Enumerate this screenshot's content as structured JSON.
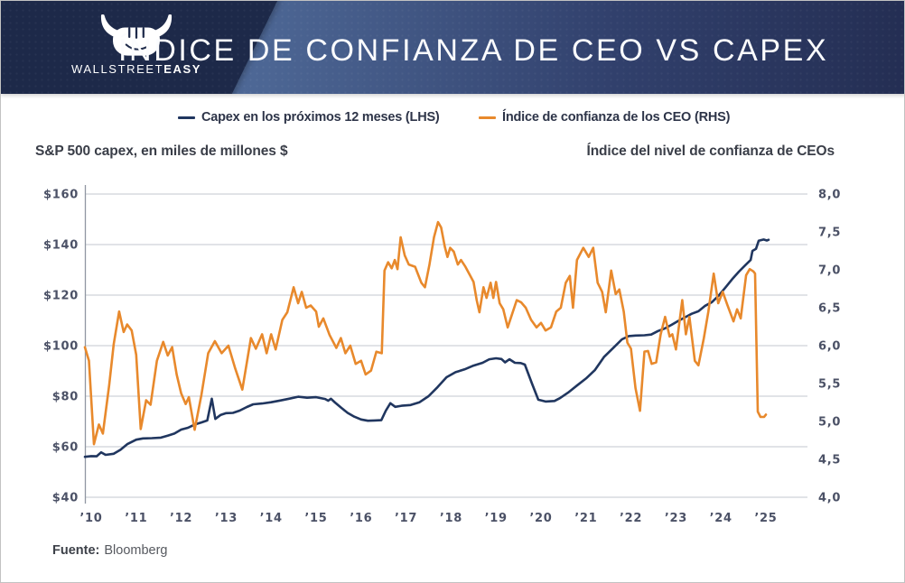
{
  "header": {
    "title": "ÍNDICE DE CONFIANZA DE CEO VS CAPEX",
    "brand_prefix": "WALLSTREET",
    "brand_suffix": "EASY",
    "colors": {
      "banner_left": "#58739f",
      "banner_right": "#242e53",
      "logo_plate": "#1d2949"
    }
  },
  "legend": [
    {
      "label": "Capex en los próximos 12 meses (LHS)",
      "color": "#20365f"
    },
    {
      "label": "Índice de confianza de los CEO (RHS)",
      "color": "#e8892c"
    }
  ],
  "axis_titles": {
    "left": "S&P 500 capex, en miles de millones $",
    "right": "Índice del nivel de confianza de CEOs"
  },
  "footer": {
    "source_label": "Fuente:",
    "source_value": "Bloomberg"
  },
  "chart_data": {
    "type": "line",
    "grid": true,
    "x_ticks": [
      "’10",
      "’11",
      "’12",
      "’13",
      "’14",
      "’15",
      "’16",
      "’17",
      "’18",
      "’19",
      "’20",
      "’21",
      "’22",
      "’23",
      "’24",
      "’25"
    ],
    "y_left": {
      "ticks": [
        "$160",
        "$140",
        "$120",
        "$100",
        "$80",
        "$60",
        "$40"
      ],
      "min": 40,
      "max": 160
    },
    "y_right": {
      "ticks": [
        "8,0",
        "7,5",
        "7,0",
        "6,5",
        "6,0",
        "5,5",
        "5,0",
        "4,5",
        "4,0"
      ],
      "min": 4.0,
      "max": 8.0
    },
    "colors": {
      "grid": "#c3c7cf",
      "spine": "#9096a2"
    },
    "series": [
      {
        "name": "Capex en los próximos 12 meses (LHS)",
        "axis": "left",
        "color": "#20365f",
        "points": [
          [
            2009.86,
            56
          ],
          [
            2010.0,
            56.3
          ],
          [
            2010.12,
            56.2
          ],
          [
            2010.22,
            57.8
          ],
          [
            2010.32,
            56.8
          ],
          [
            2010.5,
            57.2
          ],
          [
            2010.65,
            58.8
          ],
          [
            2010.8,
            61.0
          ],
          [
            2011.0,
            62.8
          ],
          [
            2011.15,
            63.3
          ],
          [
            2011.35,
            63.4
          ],
          [
            2011.55,
            63.6
          ],
          [
            2011.7,
            64.4
          ],
          [
            2011.85,
            65.2
          ],
          [
            2012.0,
            66.8
          ],
          [
            2012.15,
            67.5
          ],
          [
            2012.3,
            68.8
          ],
          [
            2012.45,
            69.6
          ],
          [
            2012.58,
            70.4
          ],
          [
            2012.68,
            79.0
          ],
          [
            2012.76,
            71.0
          ],
          [
            2012.88,
            72.6
          ],
          [
            2013.0,
            73.3
          ],
          [
            2013.15,
            73.4
          ],
          [
            2013.3,
            74.3
          ],
          [
            2013.46,
            75.7
          ],
          [
            2013.6,
            76.8
          ],
          [
            2013.8,
            77.1
          ],
          [
            2014.0,
            77.6
          ],
          [
            2014.2,
            78.3
          ],
          [
            2014.4,
            79.0
          ],
          [
            2014.6,
            79.8
          ],
          [
            2014.8,
            79.4
          ],
          [
            2015.0,
            79.6
          ],
          [
            2015.2,
            78.9
          ],
          [
            2015.27,
            78.2
          ],
          [
            2015.33,
            79.0
          ],
          [
            2015.42,
            77.5
          ],
          [
            2015.56,
            75.4
          ],
          [
            2015.7,
            73.4
          ],
          [
            2015.85,
            71.9
          ],
          [
            2016.0,
            70.8
          ],
          [
            2016.15,
            70.3
          ],
          [
            2016.3,
            70.4
          ],
          [
            2016.45,
            70.5
          ],
          [
            2016.55,
            74.3
          ],
          [
            2016.65,
            77.2
          ],
          [
            2016.76,
            75.8
          ],
          [
            2016.9,
            76.2
          ],
          [
            2017.1,
            76.5
          ],
          [
            2017.3,
            77.6
          ],
          [
            2017.5,
            80.0
          ],
          [
            2017.7,
            83.6
          ],
          [
            2017.9,
            87.5
          ],
          [
            2018.1,
            89.5
          ],
          [
            2018.3,
            90.6
          ],
          [
            2018.5,
            92.1
          ],
          [
            2018.7,
            93.2
          ],
          [
            2018.85,
            94.6
          ],
          [
            2019.0,
            95.0
          ],
          [
            2019.12,
            94.7
          ],
          [
            2019.2,
            93.4
          ],
          [
            2019.3,
            94.6
          ],
          [
            2019.42,
            93.2
          ],
          [
            2019.55,
            93.1
          ],
          [
            2019.64,
            92.5
          ],
          [
            2019.8,
            85.0
          ],
          [
            2019.94,
            78.6
          ],
          [
            2020.1,
            77.9
          ],
          [
            2020.3,
            78.1
          ],
          [
            2020.42,
            79.2
          ],
          [
            2020.6,
            81.4
          ],
          [
            2020.8,
            84.2
          ],
          [
            2021.0,
            87.0
          ],
          [
            2021.2,
            90.4
          ],
          [
            2021.4,
            95.5
          ],
          [
            2021.6,
            99.0
          ],
          [
            2021.8,
            102.5
          ],
          [
            2021.95,
            103.8
          ],
          [
            2022.1,
            104.0
          ],
          [
            2022.3,
            104.1
          ],
          [
            2022.45,
            104.4
          ],
          [
            2022.6,
            105.8
          ],
          [
            2022.75,
            106.8
          ],
          [
            2022.9,
            108.2
          ],
          [
            2023.05,
            109.8
          ],
          [
            2023.2,
            111.2
          ],
          [
            2023.35,
            112.6
          ],
          [
            2023.5,
            113.6
          ],
          [
            2023.65,
            115.8
          ],
          [
            2023.8,
            117.2
          ],
          [
            2023.95,
            119.8
          ],
          [
            2024.1,
            123.0
          ],
          [
            2024.25,
            126.3
          ],
          [
            2024.4,
            129.3
          ],
          [
            2024.55,
            132.0
          ],
          [
            2024.66,
            133.9
          ],
          [
            2024.7,
            137.5
          ],
          [
            2024.78,
            138.3
          ],
          [
            2024.84,
            141.5
          ],
          [
            2024.95,
            142.0
          ],
          [
            2025.02,
            141.6
          ],
          [
            2025.06,
            141.9
          ]
        ]
      },
      {
        "name": "Índice de confianza de los CEO (RHS)",
        "axis": "right",
        "color": "#e8892c",
        "points": [
          [
            2009.86,
            5.98
          ],
          [
            2009.95,
            5.8
          ],
          [
            2010.06,
            4.7
          ],
          [
            2010.17,
            4.96
          ],
          [
            2010.26,
            4.84
          ],
          [
            2010.4,
            5.48
          ],
          [
            2010.5,
            6.02
          ],
          [
            2010.62,
            6.45
          ],
          [
            2010.72,
            6.18
          ],
          [
            2010.8,
            6.28
          ],
          [
            2010.9,
            6.2
          ],
          [
            2011.0,
            5.88
          ],
          [
            2011.1,
            4.9
          ],
          [
            2011.22,
            5.28
          ],
          [
            2011.32,
            5.22
          ],
          [
            2011.46,
            5.8
          ],
          [
            2011.6,
            6.05
          ],
          [
            2011.7,
            5.87
          ],
          [
            2011.8,
            5.98
          ],
          [
            2011.9,
            5.62
          ],
          [
            2012.0,
            5.37
          ],
          [
            2012.1,
            5.23
          ],
          [
            2012.17,
            5.32
          ],
          [
            2012.3,
            4.89
          ],
          [
            2012.45,
            5.35
          ],
          [
            2012.6,
            5.9
          ],
          [
            2012.75,
            6.06
          ],
          [
            2012.9,
            5.9
          ],
          [
            2013.05,
            6.0
          ],
          [
            2013.2,
            5.7
          ],
          [
            2013.36,
            5.42
          ],
          [
            2013.55,
            6.1
          ],
          [
            2013.66,
            5.96
          ],
          [
            2013.8,
            6.15
          ],
          [
            2013.9,
            5.9
          ],
          [
            2014.0,
            6.15
          ],
          [
            2014.1,
            5.95
          ],
          [
            2014.25,
            6.34
          ],
          [
            2014.36,
            6.44
          ],
          [
            2014.5,
            6.77
          ],
          [
            2014.6,
            6.56
          ],
          [
            2014.68,
            6.71
          ],
          [
            2014.78,
            6.5
          ],
          [
            2014.88,
            6.53
          ],
          [
            2015.0,
            6.45
          ],
          [
            2015.06,
            6.25
          ],
          [
            2015.16,
            6.36
          ],
          [
            2015.3,
            6.14
          ],
          [
            2015.45,
            5.97
          ],
          [
            2015.55,
            6.1
          ],
          [
            2015.65,
            5.9
          ],
          [
            2015.76,
            6.0
          ],
          [
            2015.88,
            5.76
          ],
          [
            2016.0,
            5.8
          ],
          [
            2016.1,
            5.62
          ],
          [
            2016.22,
            5.67
          ],
          [
            2016.34,
            5.92
          ],
          [
            2016.46,
            5.9
          ],
          [
            2016.52,
            6.99
          ],
          [
            2016.6,
            7.1
          ],
          [
            2016.68,
            7.02
          ],
          [
            2016.75,
            7.13
          ],
          [
            2016.81,
            7.01
          ],
          [
            2016.88,
            7.43
          ],
          [
            2016.97,
            7.19
          ],
          [
            2017.06,
            7.07
          ],
          [
            2017.2,
            7.04
          ],
          [
            2017.34,
            6.83
          ],
          [
            2017.42,
            6.77
          ],
          [
            2017.52,
            7.07
          ],
          [
            2017.62,
            7.43
          ],
          [
            2017.71,
            7.63
          ],
          [
            2017.78,
            7.56
          ],
          [
            2017.86,
            7.31
          ],
          [
            2017.92,
            7.17
          ],
          [
            2017.98,
            7.29
          ],
          [
            2018.06,
            7.24
          ],
          [
            2018.15,
            7.07
          ],
          [
            2018.22,
            7.13
          ],
          [
            2018.32,
            7.04
          ],
          [
            2018.42,
            6.93
          ],
          [
            2018.5,
            6.84
          ],
          [
            2018.57,
            6.6
          ],
          [
            2018.63,
            6.44
          ],
          [
            2018.72,
            6.77
          ],
          [
            2018.79,
            6.63
          ],
          [
            2018.88,
            6.83
          ],
          [
            2018.94,
            6.63
          ],
          [
            2019.0,
            6.84
          ],
          [
            2019.08,
            6.56
          ],
          [
            2019.16,
            6.48
          ],
          [
            2019.26,
            6.24
          ],
          [
            2019.36,
            6.42
          ],
          [
            2019.46,
            6.6
          ],
          [
            2019.56,
            6.57
          ],
          [
            2019.66,
            6.5
          ],
          [
            2019.78,
            6.34
          ],
          [
            2019.9,
            6.24
          ],
          [
            2020.0,
            6.3
          ],
          [
            2020.1,
            6.2
          ],
          [
            2020.22,
            6.24
          ],
          [
            2020.34,
            6.45
          ],
          [
            2020.44,
            6.5
          ],
          [
            2020.55,
            6.83
          ],
          [
            2020.64,
            6.92
          ],
          [
            2020.71,
            6.5
          ],
          [
            2020.8,
            7.13
          ],
          [
            2020.94,
            7.29
          ],
          [
            2021.06,
            7.17
          ],
          [
            2021.16,
            7.29
          ],
          [
            2021.26,
            6.83
          ],
          [
            2021.36,
            6.71
          ],
          [
            2021.44,
            6.44
          ],
          [
            2021.56,
            6.99
          ],
          [
            2021.66,
            6.68
          ],
          [
            2021.74,
            6.74
          ],
          [
            2021.84,
            6.45
          ],
          [
            2021.92,
            6.04
          ],
          [
            2022.0,
            5.96
          ],
          [
            2022.1,
            5.44
          ],
          [
            2022.2,
            5.14
          ],
          [
            2022.3,
            5.92
          ],
          [
            2022.38,
            5.93
          ],
          [
            2022.46,
            5.76
          ],
          [
            2022.56,
            5.78
          ],
          [
            2022.66,
            6.15
          ],
          [
            2022.76,
            6.38
          ],
          [
            2022.86,
            6.12
          ],
          [
            2022.92,
            6.15
          ],
          [
            2023.0,
            5.95
          ],
          [
            2023.14,
            6.6
          ],
          [
            2023.22,
            6.15
          ],
          [
            2023.3,
            6.38
          ],
          [
            2023.42,
            5.8
          ],
          [
            2023.5,
            5.74
          ],
          [
            2023.62,
            6.1
          ],
          [
            2023.72,
            6.45
          ],
          [
            2023.84,
            6.95
          ],
          [
            2023.94,
            6.56
          ],
          [
            2024.04,
            6.71
          ],
          [
            2024.14,
            6.54
          ],
          [
            2024.28,
            6.32
          ],
          [
            2024.36,
            6.48
          ],
          [
            2024.44,
            6.36
          ],
          [
            2024.56,
            6.93
          ],
          [
            2024.64,
            7.01
          ],
          [
            2024.72,
            6.98
          ],
          [
            2024.76,
            6.95
          ],
          [
            2024.82,
            5.13
          ],
          [
            2024.88,
            5.06
          ],
          [
            2024.96,
            5.06
          ],
          [
            2025.0,
            5.09
          ]
        ]
      }
    ]
  }
}
